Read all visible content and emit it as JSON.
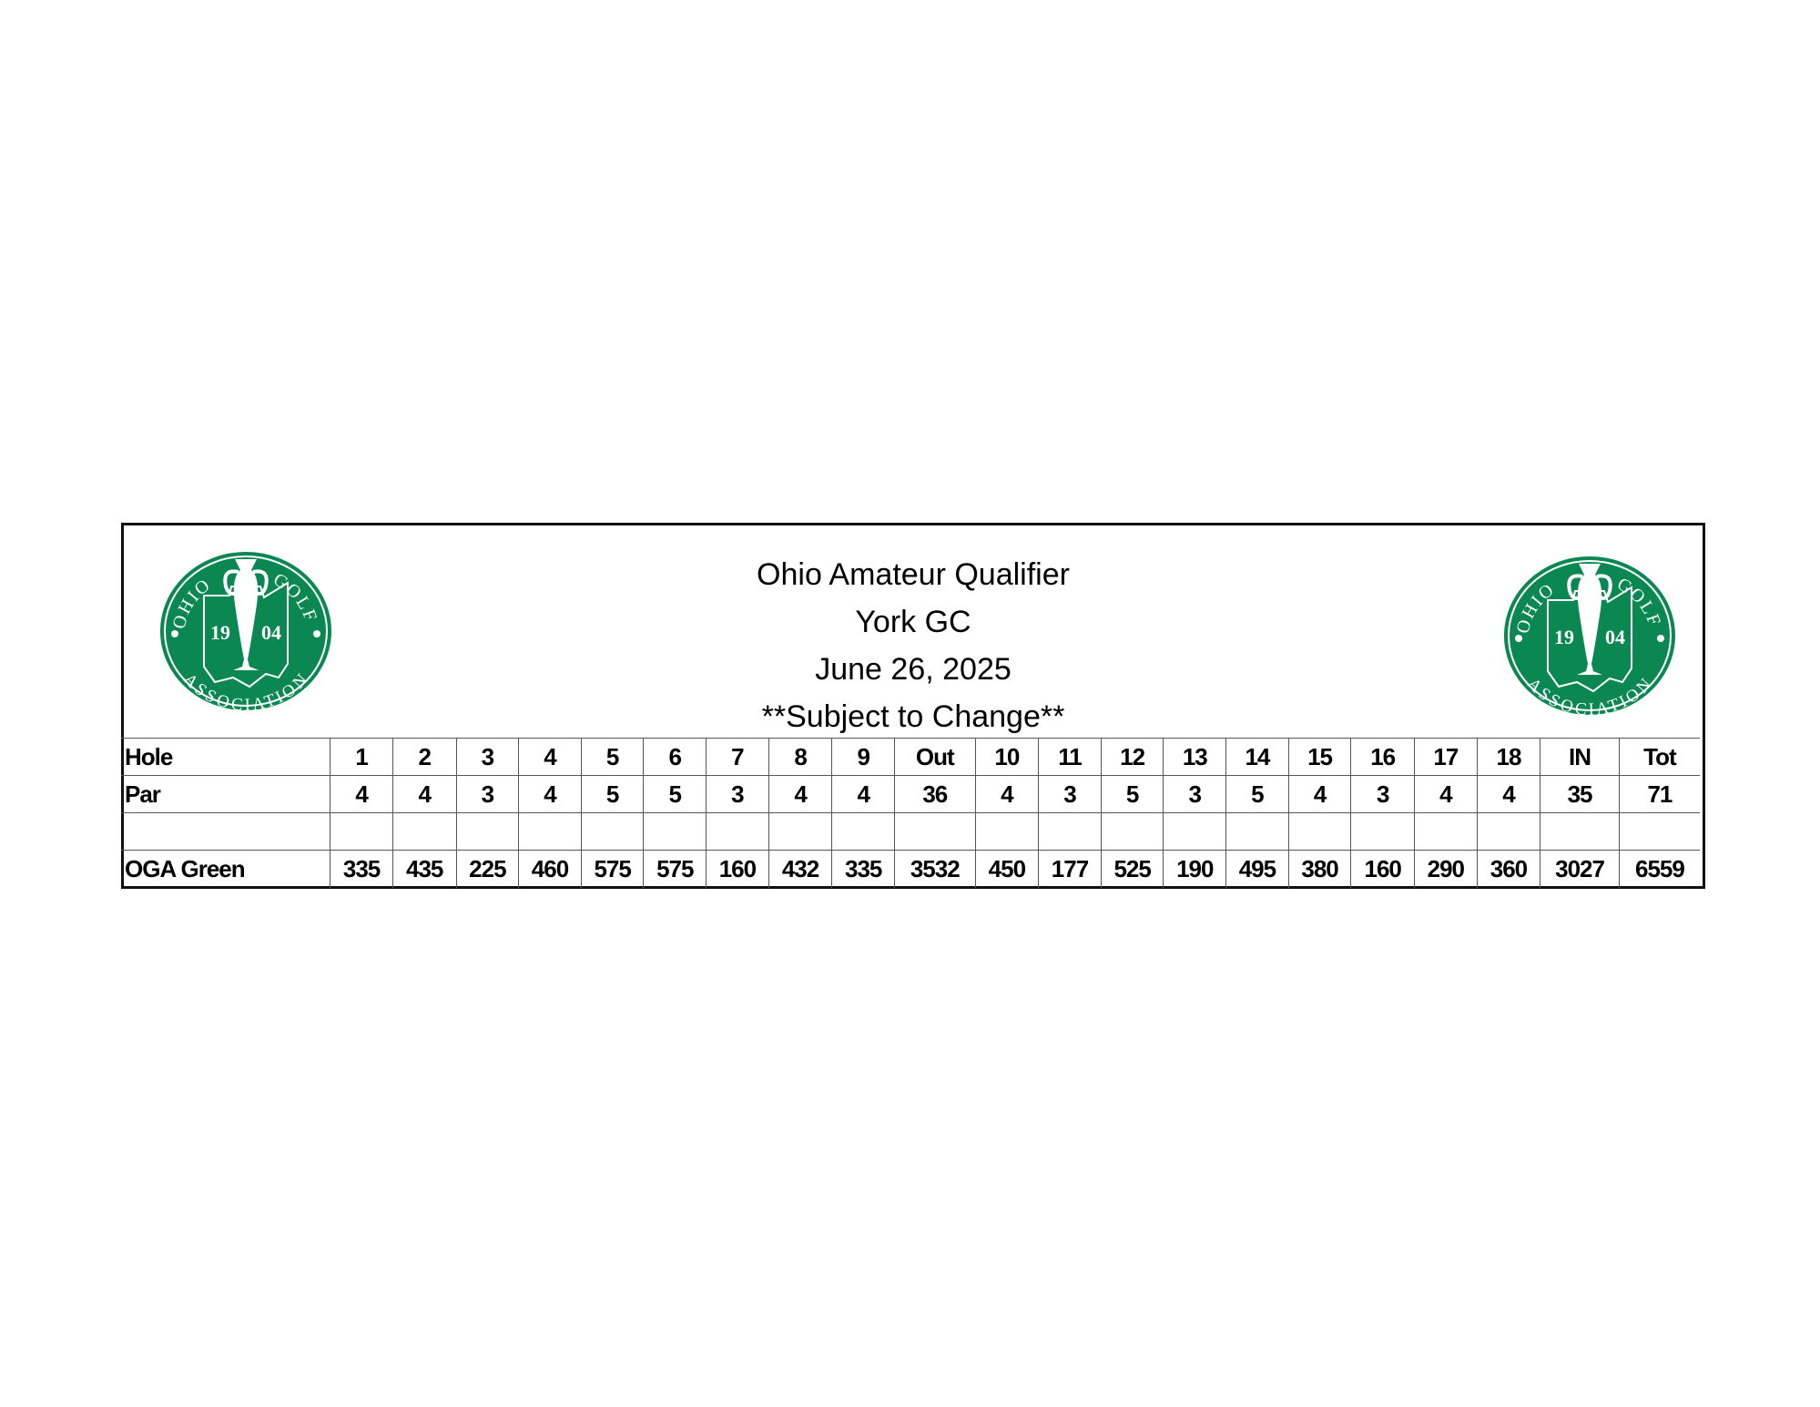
{
  "header": {
    "title": "Ohio Amateur Qualifier",
    "course": "York GC",
    "date": "June 26, 2025",
    "note": "**Subject to Change**"
  },
  "logo": {
    "text_top_left": "OHIO",
    "text_top_right": "GOLF",
    "text_bottom": "ASSOCIATION",
    "year_left": "19",
    "year_right": "04",
    "color": "#0b8752"
  },
  "scorecard": {
    "rows": [
      {
        "label": "Hole",
        "cells": [
          "1",
          "2",
          "3",
          "4",
          "5",
          "6",
          "7",
          "8",
          "9",
          "Out",
          "10",
          "11",
          "12",
          "13",
          "14",
          "15",
          "16",
          "17",
          "18",
          "IN",
          "Tot"
        ]
      },
      {
        "label": "Par",
        "cells": [
          "4",
          "4",
          "3",
          "4",
          "5",
          "5",
          "3",
          "4",
          "4",
          "36",
          "4",
          "3",
          "5",
          "3",
          "5",
          "4",
          "3",
          "4",
          "4",
          "35",
          "71"
        ]
      },
      {
        "label": "",
        "cells": [
          "",
          "",
          "",
          "",
          "",
          "",
          "",
          "",
          "",
          "",
          "",
          "",
          "",
          "",
          "",
          "",
          "",
          "",
          "",
          "",
          ""
        ]
      },
      {
        "label": "OGA Green",
        "cells": [
          "335",
          "435",
          "225",
          "460",
          "575",
          "575",
          "160",
          "432",
          "335",
          "3532",
          "450",
          "177",
          "525",
          "190",
          "495",
          "380",
          "160",
          "290",
          "360",
          "3027",
          "6559"
        ]
      }
    ]
  }
}
